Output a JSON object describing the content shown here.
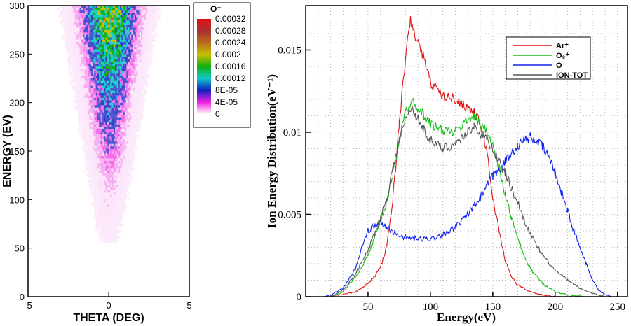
{
  "chart_data": [
    {
      "type": "heatmap",
      "xlabel": "THETA (DEG)",
      "ylabel": "ENERGY (EV)",
      "xlim": [
        -5,
        5
      ],
      "ylim": [
        0,
        300
      ],
      "xticks": [
        "-5",
        "0",
        "5"
      ],
      "yticks": [
        "0",
        "50",
        "100",
        "150",
        "200",
        "250",
        "300"
      ],
      "colorbar": {
        "title": "O⁺",
        "levels": [
          "0.00032",
          "0.00028",
          "0.00024",
          "0.0002",
          "0.00016",
          "0.00012",
          "8E-05",
          "4E-05",
          "0"
        ],
        "colors": [
          "#e01010",
          "#a83030",
          "#b86a20",
          "#c8c000",
          "#10b010",
          "#10c8c8",
          "#1020c0",
          "#f020e0",
          "#ffffff"
        ]
      }
    },
    {
      "type": "line",
      "xlabel": "Energy(eV)",
      "ylabel": "Ion Energy Distribution(eV⁻¹)",
      "xlim": [
        0,
        258
      ],
      "ylim": [
        0,
        0.0177
      ],
      "xticks": [
        "50",
        "100",
        "150",
        "200",
        "250"
      ],
      "yticks": [
        "0",
        "0.005",
        "0.01",
        "0.015"
      ],
      "grid": true,
      "legend_position": "top-right",
      "series": [
        {
          "name": "Ar⁺",
          "color": "#e01010",
          "x": [
            20,
            40,
            50,
            55,
            60,
            65,
            70,
            75,
            80,
            84,
            88,
            95,
            100,
            110,
            120,
            130,
            135,
            140,
            145,
            150,
            155,
            160,
            165,
            170,
            180,
            190,
            200,
            220
          ],
          "y": [
            0,
            0.0003,
            0.0008,
            0.0012,
            0.0018,
            0.003,
            0.006,
            0.0105,
            0.0145,
            0.0168,
            0.0158,
            0.0145,
            0.013,
            0.0122,
            0.012,
            0.0115,
            0.0112,
            0.0105,
            0.009,
            0.006,
            0.004,
            0.0022,
            0.0012,
            0.0007,
            0.0003,
            0.0001,
            0,
            0
          ]
        },
        {
          "name": "O₂⁺",
          "color": "#10c010",
          "x": [
            20,
            30,
            40,
            50,
            55,
            60,
            65,
            70,
            75,
            80,
            85,
            90,
            100,
            110,
            120,
            130,
            135,
            140,
            145,
            150,
            155,
            160,
            165,
            170,
            175,
            180,
            190,
            200,
            210,
            225
          ],
          "y": [
            0,
            0.0003,
            0.0012,
            0.0025,
            0.0035,
            0.0045,
            0.0058,
            0.0075,
            0.0095,
            0.0112,
            0.012,
            0.0115,
            0.0105,
            0.0101,
            0.01,
            0.0108,
            0.011,
            0.0104,
            0.0102,
            0.0092,
            0.0078,
            0.0062,
            0.0048,
            0.0035,
            0.0025,
            0.0017,
            0.0008,
            0.0003,
            0.0001,
            0
          ]
        },
        {
          "name": "O⁺",
          "color": "#1020f0",
          "x": [
            15,
            20,
            30,
            40,
            45,
            50,
            55,
            60,
            65,
            70,
            80,
            90,
            100,
            110,
            120,
            130,
            140,
            145,
            150,
            155,
            160,
            165,
            170,
            175,
            180,
            185,
            190,
            195,
            200,
            205,
            210,
            215,
            220,
            225,
            230,
            235,
            240,
            245
          ],
          "y": [
            0,
            0.0001,
            0.0005,
            0.0017,
            0.003,
            0.004,
            0.0043,
            0.0045,
            0.0042,
            0.0039,
            0.0036,
            0.0035,
            0.0035,
            0.0038,
            0.0042,
            0.005,
            0.006,
            0.0067,
            0.0073,
            0.0077,
            0.0082,
            0.0087,
            0.0092,
            0.0095,
            0.0097,
            0.0095,
            0.0091,
            0.0085,
            0.0075,
            0.0064,
            0.0052,
            0.004,
            0.003,
            0.002,
            0.001,
            0.0004,
            0.0001,
            0
          ]
        },
        {
          "name": "ION-TOT",
          "color": "#555555",
          "x": [
            20,
            30,
            40,
            50,
            55,
            60,
            65,
            70,
            75,
            80,
            85,
            90,
            100,
            110,
            120,
            130,
            135,
            140,
            145,
            150,
            155,
            160,
            170,
            180,
            190,
            200,
            210,
            220,
            230,
            240
          ],
          "y": [
            0,
            0.0004,
            0.0014,
            0.0028,
            0.0038,
            0.0048,
            0.006,
            0.0078,
            0.0095,
            0.0108,
            0.0115,
            0.0108,
            0.0095,
            0.009,
            0.0093,
            0.01,
            0.0104,
            0.0099,
            0.0096,
            0.009,
            0.0082,
            0.0075,
            0.0057,
            0.0038,
            0.0025,
            0.0016,
            0.001,
            0.0005,
            0.0002,
            0
          ]
        }
      ]
    }
  ]
}
